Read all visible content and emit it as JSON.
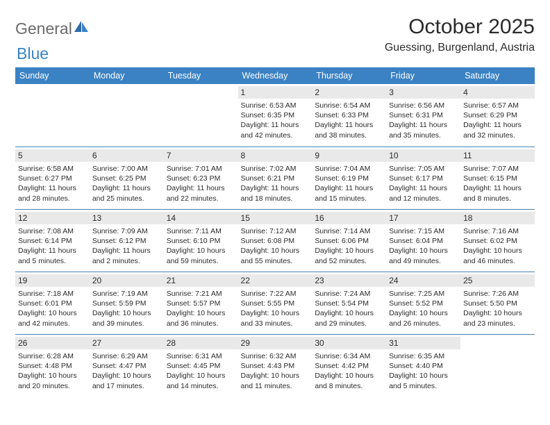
{
  "brand": {
    "word1": "General",
    "word2": "Blue"
  },
  "title": "October 2025",
  "location": "Guessing, Burgenland, Austria",
  "colors": {
    "header_bg": "#3b82c4",
    "header_text": "#ffffff",
    "rule": "#4a7fb3",
    "daynum_bg": "#e9e9e9",
    "text": "#2b2b2b",
    "logo_gray": "#6a6a6a"
  },
  "day_headers": [
    "Sunday",
    "Monday",
    "Tuesday",
    "Wednesday",
    "Thursday",
    "Friday",
    "Saturday"
  ],
  "weeks": [
    [
      null,
      null,
      null,
      {
        "n": "1",
        "sr": "Sunrise: 6:53 AM",
        "ss": "Sunset: 6:35 PM",
        "d1": "Daylight: 11 hours",
        "d2": "and 42 minutes."
      },
      {
        "n": "2",
        "sr": "Sunrise: 6:54 AM",
        "ss": "Sunset: 6:33 PM",
        "d1": "Daylight: 11 hours",
        "d2": "and 38 minutes."
      },
      {
        "n": "3",
        "sr": "Sunrise: 6:56 AM",
        "ss": "Sunset: 6:31 PM",
        "d1": "Daylight: 11 hours",
        "d2": "and 35 minutes."
      },
      {
        "n": "4",
        "sr": "Sunrise: 6:57 AM",
        "ss": "Sunset: 6:29 PM",
        "d1": "Daylight: 11 hours",
        "d2": "and 32 minutes."
      }
    ],
    [
      {
        "n": "5",
        "sr": "Sunrise: 6:58 AM",
        "ss": "Sunset: 6:27 PM",
        "d1": "Daylight: 11 hours",
        "d2": "and 28 minutes."
      },
      {
        "n": "6",
        "sr": "Sunrise: 7:00 AM",
        "ss": "Sunset: 6:25 PM",
        "d1": "Daylight: 11 hours",
        "d2": "and 25 minutes."
      },
      {
        "n": "7",
        "sr": "Sunrise: 7:01 AM",
        "ss": "Sunset: 6:23 PM",
        "d1": "Daylight: 11 hours",
        "d2": "and 22 minutes."
      },
      {
        "n": "8",
        "sr": "Sunrise: 7:02 AM",
        "ss": "Sunset: 6:21 PM",
        "d1": "Daylight: 11 hours",
        "d2": "and 18 minutes."
      },
      {
        "n": "9",
        "sr": "Sunrise: 7:04 AM",
        "ss": "Sunset: 6:19 PM",
        "d1": "Daylight: 11 hours",
        "d2": "and 15 minutes."
      },
      {
        "n": "10",
        "sr": "Sunrise: 7:05 AM",
        "ss": "Sunset: 6:17 PM",
        "d1": "Daylight: 11 hours",
        "d2": "and 12 minutes."
      },
      {
        "n": "11",
        "sr": "Sunrise: 7:07 AM",
        "ss": "Sunset: 6:15 PM",
        "d1": "Daylight: 11 hours",
        "d2": "and 8 minutes."
      }
    ],
    [
      {
        "n": "12",
        "sr": "Sunrise: 7:08 AM",
        "ss": "Sunset: 6:14 PM",
        "d1": "Daylight: 11 hours",
        "d2": "and 5 minutes."
      },
      {
        "n": "13",
        "sr": "Sunrise: 7:09 AM",
        "ss": "Sunset: 6:12 PM",
        "d1": "Daylight: 11 hours",
        "d2": "and 2 minutes."
      },
      {
        "n": "14",
        "sr": "Sunrise: 7:11 AM",
        "ss": "Sunset: 6:10 PM",
        "d1": "Daylight: 10 hours",
        "d2": "and 59 minutes."
      },
      {
        "n": "15",
        "sr": "Sunrise: 7:12 AM",
        "ss": "Sunset: 6:08 PM",
        "d1": "Daylight: 10 hours",
        "d2": "and 55 minutes."
      },
      {
        "n": "16",
        "sr": "Sunrise: 7:14 AM",
        "ss": "Sunset: 6:06 PM",
        "d1": "Daylight: 10 hours",
        "d2": "and 52 minutes."
      },
      {
        "n": "17",
        "sr": "Sunrise: 7:15 AM",
        "ss": "Sunset: 6:04 PM",
        "d1": "Daylight: 10 hours",
        "d2": "and 49 minutes."
      },
      {
        "n": "18",
        "sr": "Sunrise: 7:16 AM",
        "ss": "Sunset: 6:02 PM",
        "d1": "Daylight: 10 hours",
        "d2": "and 46 minutes."
      }
    ],
    [
      {
        "n": "19",
        "sr": "Sunrise: 7:18 AM",
        "ss": "Sunset: 6:01 PM",
        "d1": "Daylight: 10 hours",
        "d2": "and 42 minutes."
      },
      {
        "n": "20",
        "sr": "Sunrise: 7:19 AM",
        "ss": "Sunset: 5:59 PM",
        "d1": "Daylight: 10 hours",
        "d2": "and 39 minutes."
      },
      {
        "n": "21",
        "sr": "Sunrise: 7:21 AM",
        "ss": "Sunset: 5:57 PM",
        "d1": "Daylight: 10 hours",
        "d2": "and 36 minutes."
      },
      {
        "n": "22",
        "sr": "Sunrise: 7:22 AM",
        "ss": "Sunset: 5:55 PM",
        "d1": "Daylight: 10 hours",
        "d2": "and 33 minutes."
      },
      {
        "n": "23",
        "sr": "Sunrise: 7:24 AM",
        "ss": "Sunset: 5:54 PM",
        "d1": "Daylight: 10 hours",
        "d2": "and 29 minutes."
      },
      {
        "n": "24",
        "sr": "Sunrise: 7:25 AM",
        "ss": "Sunset: 5:52 PM",
        "d1": "Daylight: 10 hours",
        "d2": "and 26 minutes."
      },
      {
        "n": "25",
        "sr": "Sunrise: 7:26 AM",
        "ss": "Sunset: 5:50 PM",
        "d1": "Daylight: 10 hours",
        "d2": "and 23 minutes."
      }
    ],
    [
      {
        "n": "26",
        "sr": "Sunrise: 6:28 AM",
        "ss": "Sunset: 4:48 PM",
        "d1": "Daylight: 10 hours",
        "d2": "and 20 minutes."
      },
      {
        "n": "27",
        "sr": "Sunrise: 6:29 AM",
        "ss": "Sunset: 4:47 PM",
        "d1": "Daylight: 10 hours",
        "d2": "and 17 minutes."
      },
      {
        "n": "28",
        "sr": "Sunrise: 6:31 AM",
        "ss": "Sunset: 4:45 PM",
        "d1": "Daylight: 10 hours",
        "d2": "and 14 minutes."
      },
      {
        "n": "29",
        "sr": "Sunrise: 6:32 AM",
        "ss": "Sunset: 4:43 PM",
        "d1": "Daylight: 10 hours",
        "d2": "and 11 minutes."
      },
      {
        "n": "30",
        "sr": "Sunrise: 6:34 AM",
        "ss": "Sunset: 4:42 PM",
        "d1": "Daylight: 10 hours",
        "d2": "and 8 minutes."
      },
      {
        "n": "31",
        "sr": "Sunrise: 6:35 AM",
        "ss": "Sunset: 4:40 PM",
        "d1": "Daylight: 10 hours",
        "d2": "and 5 minutes."
      },
      null
    ]
  ]
}
